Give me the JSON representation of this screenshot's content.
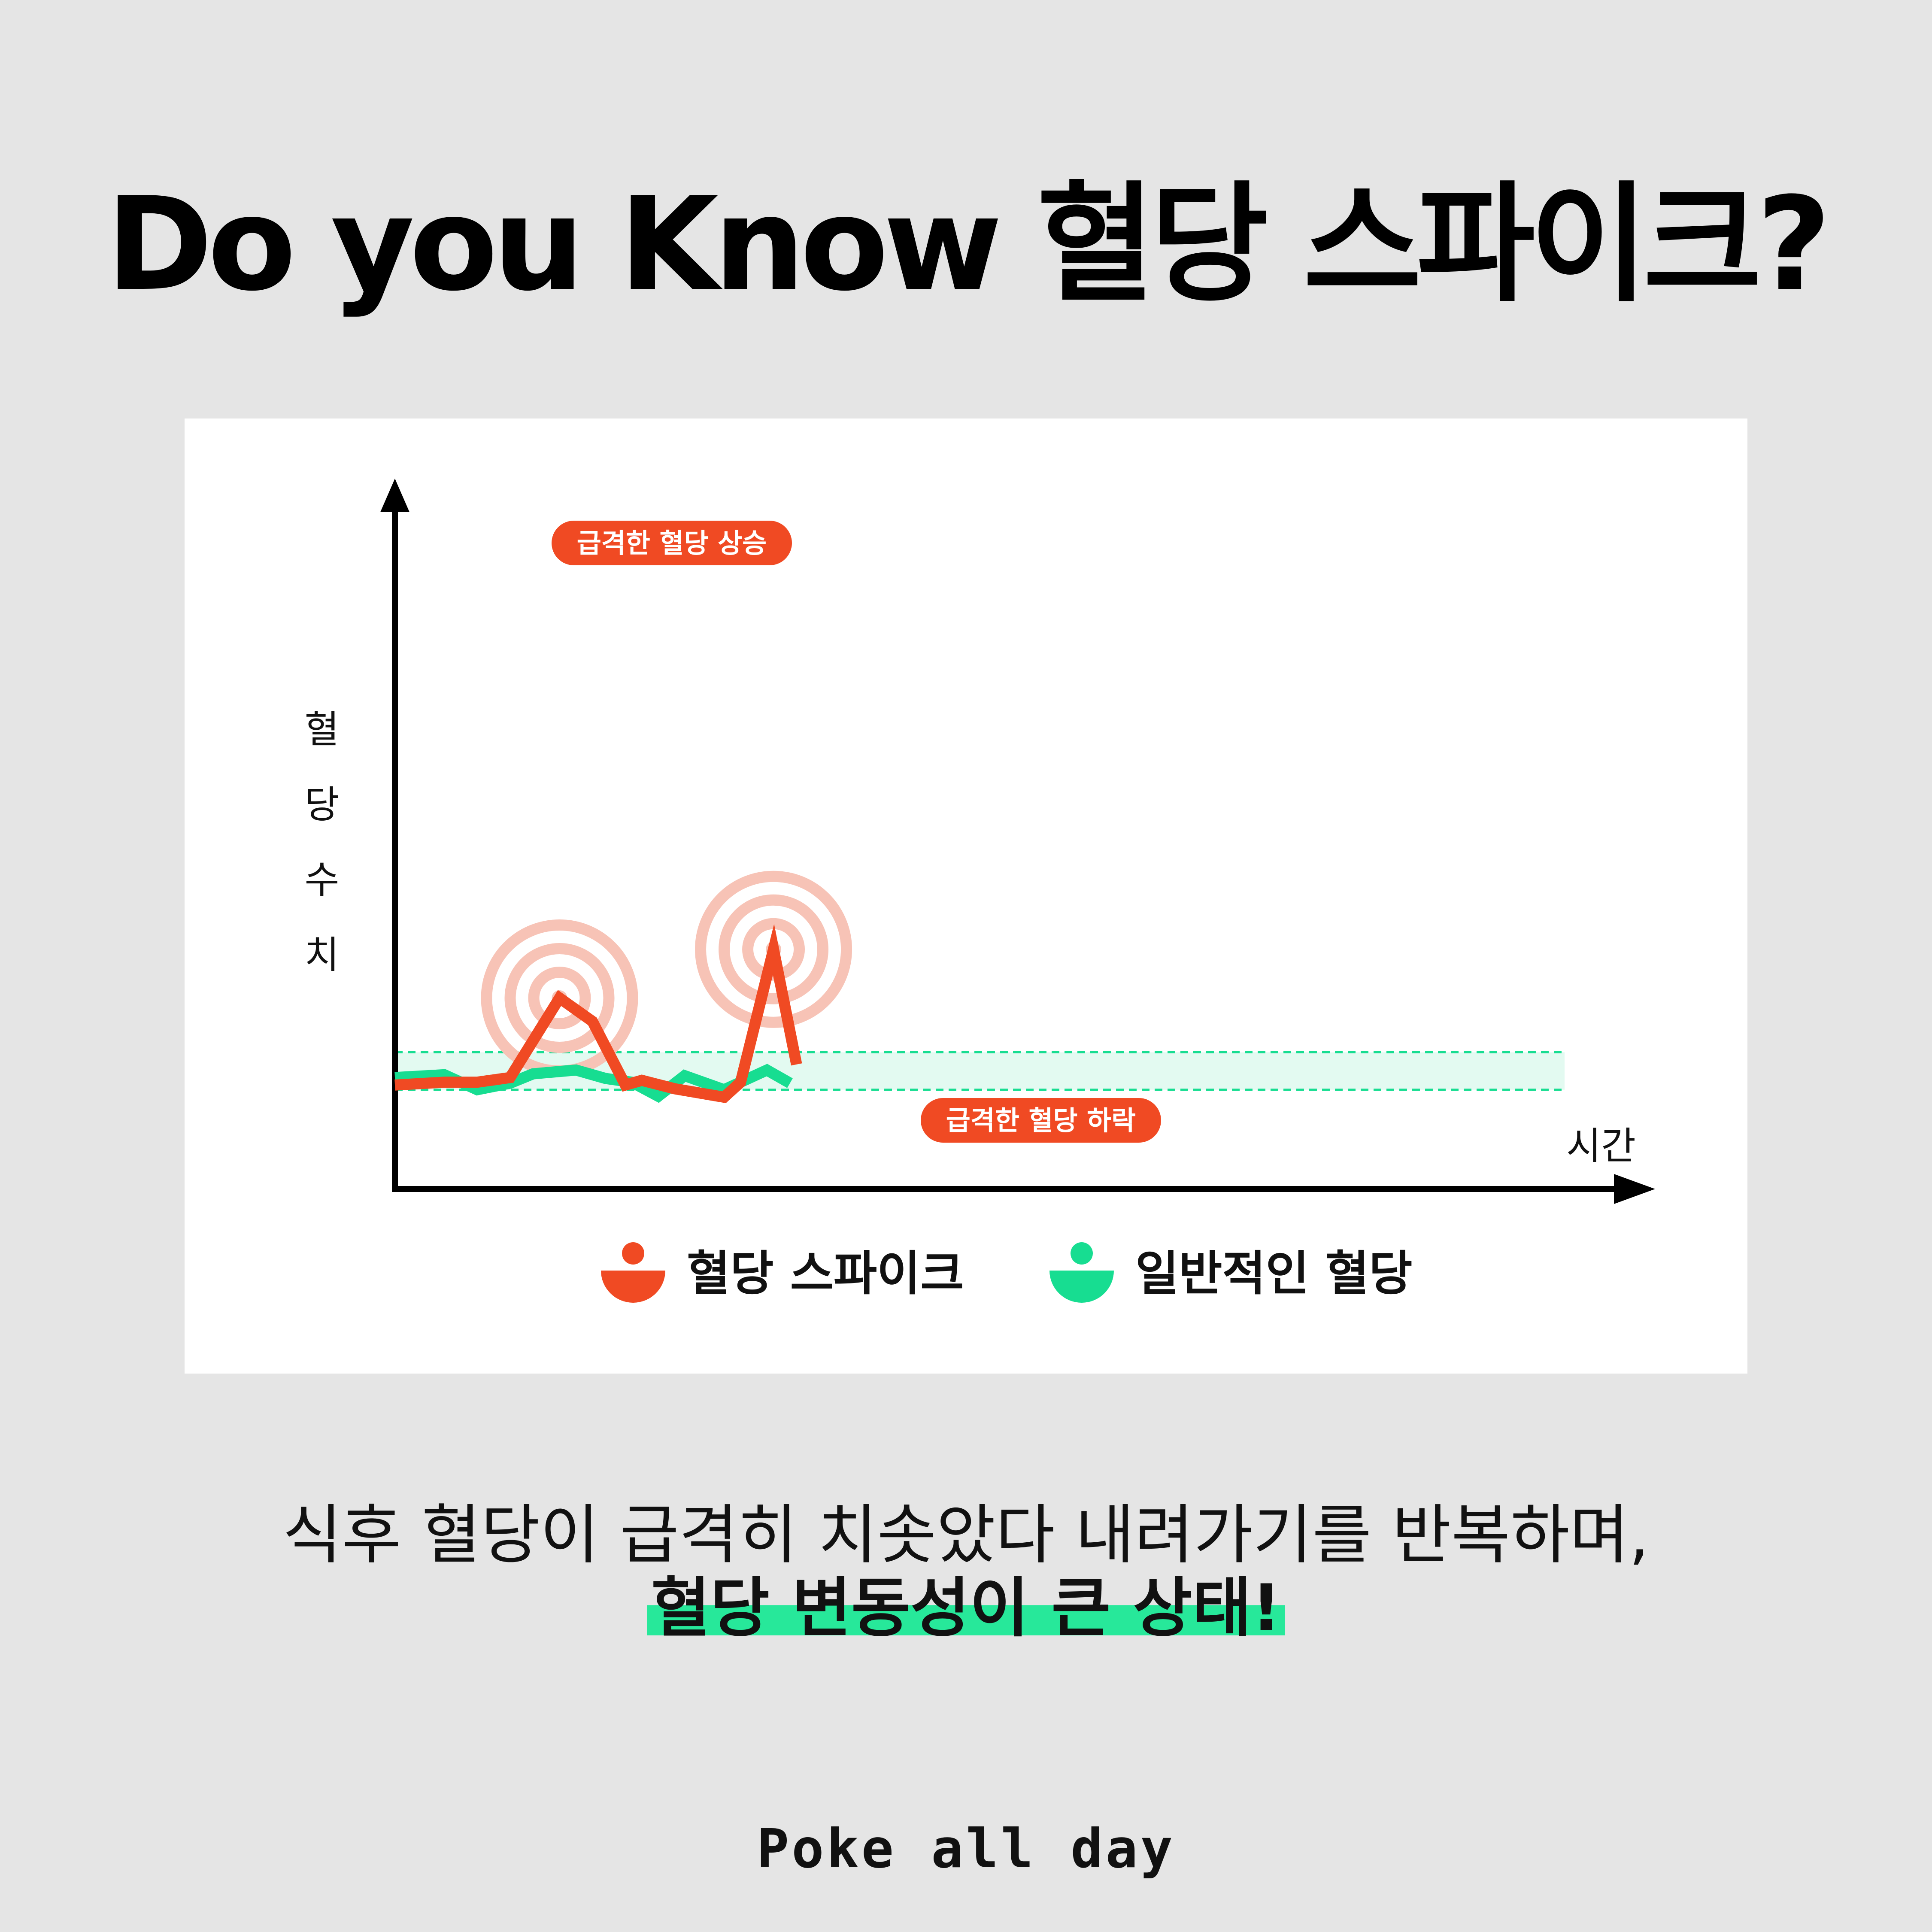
{
  "title": "Do you Know 혈당 스파이크?",
  "chart_data": {
    "type": "line",
    "ylabel": "혈당수치",
    "ylabel_chars": [
      "혈",
      "당",
      "수",
      "치"
    ],
    "xlabel": "시간",
    "ticks_shown": false,
    "normal_band": {
      "low": 35,
      "high": 75
    },
    "series": [
      {
        "name": "혈당 스파이크",
        "color": "#f04a23",
        "x": [
          0,
          1.5,
          2.5,
          3.5,
          5,
          6,
          7,
          7.5,
          8.5,
          10,
          10.5,
          11.5,
          12.2
        ],
        "values": [
          40,
          43,
          43,
          48,
          133,
          108,
          40,
          45,
          36,
          27,
          43,
          185,
          62
        ]
      },
      {
        "name": "일반적인 혈당",
        "color": "#17dd91",
        "x": [
          0,
          1.5,
          2.5,
          3.5,
          4.2,
          5.5,
          6.4,
          7.2,
          8,
          8.8,
          10,
          11.3,
          12
        ],
        "values": [
          48,
          51,
          35,
          42,
          52,
          56,
          47,
          43,
          28,
          50,
          35,
          56,
          42
        ]
      }
    ],
    "annotations": [
      {
        "text": "급격한 혈당 상승",
        "color": "#f04a23"
      },
      {
        "text": "급격한 혈당 하락",
        "color": "#f04a23"
      }
    ],
    "legend": [
      {
        "label": "혈당 스파이크",
        "color": "#f04a23"
      },
      {
        "label": "일반적인 혈당",
        "color": "#17dd91"
      }
    ]
  },
  "description": {
    "line1": "식후 혈당이 급격히 치솟았다 내려가기를 반복하며,",
    "line2": "혈당 변동성이 큰 상태!"
  },
  "brand": "Poke all day",
  "colors": {
    "background": "#e5e5e5",
    "spike": "#f04a23",
    "normal": "#17dd91",
    "band": "#e3faf1",
    "halo": "#f7c3b6"
  }
}
